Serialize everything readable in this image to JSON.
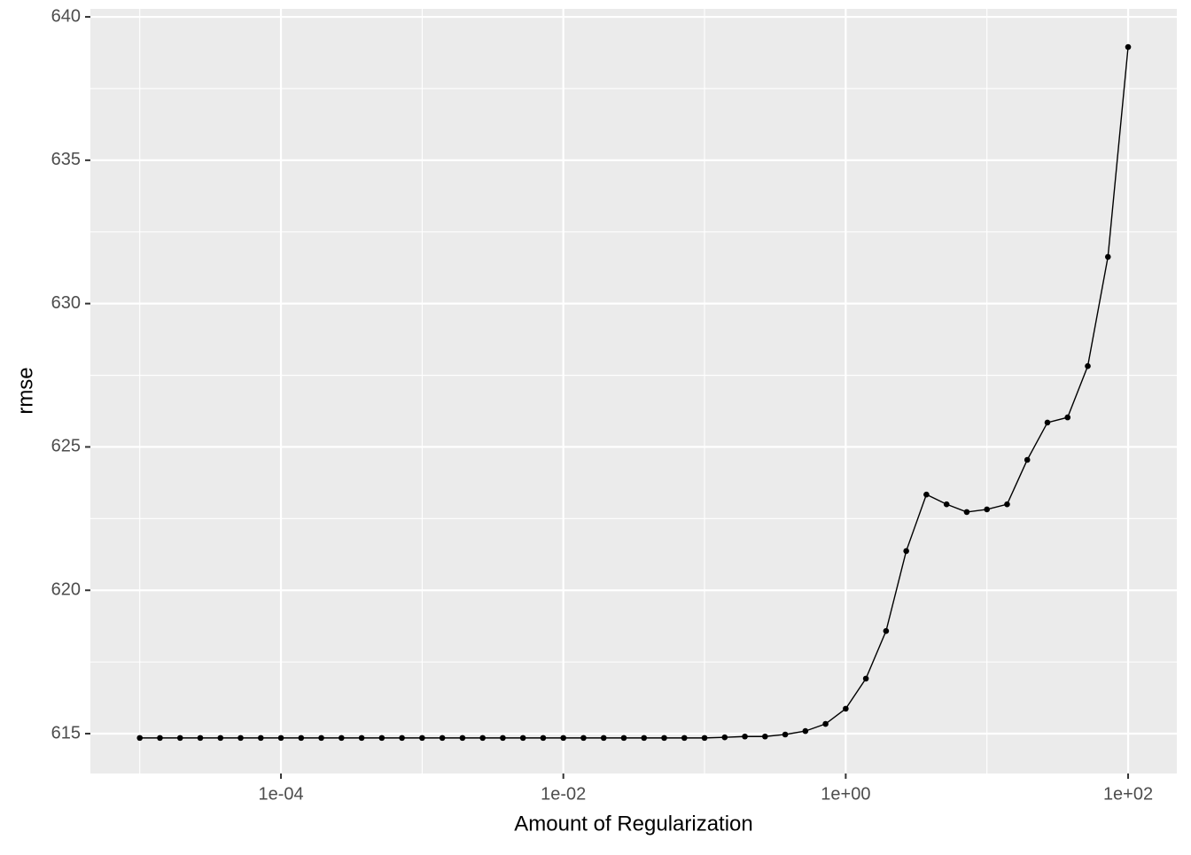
{
  "chart_data": {
    "type": "line",
    "x_label": "Amount of Regularization",
    "y_label": "rmse",
    "x": [
      1e-05,
      1.3895e-05,
      1.9307e-05,
      2.6827e-05,
      3.7276e-05,
      5.1795e-05,
      7.1969e-05,
      0.0001,
      0.00013895,
      0.00019307,
      0.00026827,
      0.00037276,
      0.00051795,
      0.00071969,
      0.001,
      0.0013895,
      0.0019307,
      0.0026827,
      0.0037276,
      0.0051795,
      0.0071969,
      0.01,
      0.013895,
      0.019307,
      0.026827,
      0.037276,
      0.051795,
      0.071969,
      0.1,
      0.13895,
      0.19307,
      0.26827,
      0.37276,
      0.51795,
      0.71969,
      1,
      1.3895,
      1.9307,
      2.6827,
      3.7276,
      5.1795,
      7.1969,
      10,
      13.895,
      19.307,
      26.827,
      37.276,
      51.795,
      71.969,
      100
    ],
    "values": [
      614.85,
      614.85,
      614.85,
      614.85,
      614.85,
      614.85,
      614.85,
      614.85,
      614.85,
      614.85,
      614.85,
      614.85,
      614.85,
      614.85,
      614.85,
      614.85,
      614.85,
      614.85,
      614.85,
      614.85,
      614.85,
      614.85,
      614.85,
      614.85,
      614.85,
      614.85,
      614.85,
      614.85,
      614.85,
      614.87,
      614.9,
      614.9,
      614.97,
      615.09,
      615.34,
      615.87,
      616.92,
      618.58,
      621.37,
      623.34,
      623.0,
      622.73,
      622.82,
      623.0,
      624.55,
      625.85,
      626.03,
      627.82,
      631.63,
      638.95
    ],
    "color": "#000000",
    "x_scale": "log",
    "xlim": [
      4.47e-06,
      221.3
    ],
    "xticks": [
      {
        "value": 0.0001,
        "label": "1e-04"
      },
      {
        "value": 0.01,
        "label": "1e-02"
      },
      {
        "value": 1,
        "label": "1e+00"
      },
      {
        "value": 100,
        "label": "1e+02"
      }
    ],
    "ylim": [
      613.61,
      640.28
    ],
    "yticks": [
      615,
      620,
      625,
      630,
      635,
      640
    ],
    "grid": true
  }
}
